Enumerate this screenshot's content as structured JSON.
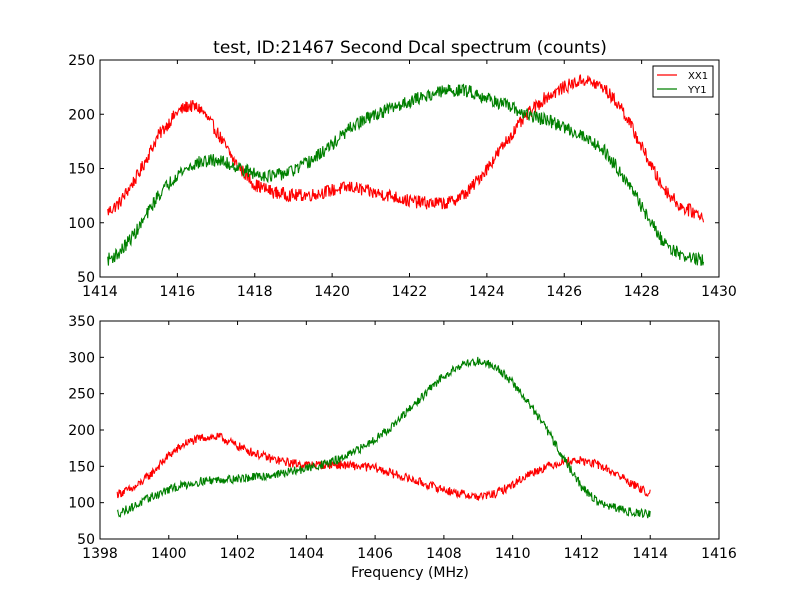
{
  "figure": {
    "title": "test, ID:21467 Second Dcal spectrum (counts)",
    "xlabel": "Frequency (MHz)"
  },
  "colors": {
    "XX1": "#ff0000",
    "YY1": "#008000",
    "axes": "#000000",
    "background": "#ffffff"
  },
  "chart_data": [
    {
      "type": "line",
      "title": "test, ID:21467 Second Dcal spectrum (counts)",
      "xlabel": "",
      "ylabel": "",
      "xlim": [
        1414,
        1430
      ],
      "ylim": [
        50,
        250
      ],
      "xticks": [
        1414,
        1416,
        1418,
        1420,
        1422,
        1424,
        1426,
        1428,
        1430
      ],
      "yticks": [
        50,
        100,
        150,
        200,
        250
      ],
      "grid": false,
      "legend": {
        "position": "top-right",
        "entries": [
          "XX1",
          "YY1"
        ]
      },
      "series": [
        {
          "name": "XX1",
          "color": "#ff0000",
          "x": [
            1414.2,
            1414.5,
            1415.0,
            1415.5,
            1416.0,
            1416.3,
            1416.6,
            1417.0,
            1417.5,
            1418.0,
            1418.5,
            1419.0,
            1419.5,
            1420.0,
            1420.5,
            1421.0,
            1421.5,
            1422.0,
            1422.5,
            1423.0,
            1423.5,
            1424.0,
            1424.5,
            1425.0,
            1425.5,
            1426.0,
            1426.5,
            1427.0,
            1427.5,
            1428.0,
            1428.5,
            1429.0,
            1429.6
          ],
          "values": [
            110,
            118,
            145,
            180,
            202,
            208,
            205,
            185,
            155,
            135,
            128,
            125,
            126,
            130,
            133,
            128,
            125,
            120,
            118,
            118,
            128,
            150,
            175,
            198,
            215,
            225,
            232,
            225,
            205,
            170,
            135,
            115,
            106
          ]
        },
        {
          "name": "YY1",
          "color": "#008000",
          "x": [
            1414.2,
            1414.5,
            1415.0,
            1415.5,
            1416.0,
            1416.5,
            1417.0,
            1417.5,
            1418.0,
            1418.5,
            1419.0,
            1419.5,
            1420.0,
            1420.5,
            1421.0,
            1421.5,
            1422.0,
            1422.5,
            1423.0,
            1423.5,
            1424.0,
            1424.5,
            1425.0,
            1425.5,
            1426.0,
            1426.5,
            1427.0,
            1427.5,
            1428.0,
            1428.5,
            1429.0,
            1429.6
          ],
          "values": [
            66,
            72,
            95,
            125,
            145,
            155,
            158,
            152,
            145,
            143,
            148,
            158,
            172,
            188,
            198,
            205,
            212,
            218,
            222,
            222,
            215,
            208,
            200,
            195,
            188,
            180,
            168,
            145,
            115,
            85,
            70,
            65
          ]
        }
      ]
    },
    {
      "type": "line",
      "title": "",
      "xlabel": "Frequency (MHz)",
      "ylabel": "",
      "xlim": [
        1398,
        1416
      ],
      "ylim": [
        50,
        350
      ],
      "xticks": [
        1398,
        1400,
        1402,
        1404,
        1406,
        1408,
        1410,
        1412,
        1414,
        1416
      ],
      "yticks": [
        50,
        100,
        150,
        200,
        250,
        300,
        350
      ],
      "grid": false,
      "series": [
        {
          "name": "XX1",
          "color": "#ff0000",
          "x": [
            1398.5,
            1399.0,
            1399.5,
            1400.0,
            1400.5,
            1401.0,
            1401.5,
            1402.0,
            1402.5,
            1403.0,
            1403.5,
            1404.0,
            1404.5,
            1405.0,
            1405.5,
            1406.0,
            1406.5,
            1407.0,
            1407.5,
            1408.0,
            1408.5,
            1409.0,
            1409.5,
            1410.0,
            1410.5,
            1411.0,
            1411.5,
            1412.0,
            1412.5,
            1413.0,
            1413.5,
            1414.0
          ],
          "values": [
            112,
            120,
            140,
            165,
            182,
            190,
            190,
            178,
            168,
            160,
            155,
            152,
            152,
            152,
            150,
            148,
            140,
            133,
            125,
            118,
            112,
            108,
            112,
            125,
            140,
            150,
            157,
            158,
            152,
            140,
            125,
            112
          ]
        },
        {
          "name": "YY1",
          "color": "#008000",
          "x": [
            1398.5,
            1399.0,
            1399.5,
            1400.0,
            1400.5,
            1401.0,
            1401.5,
            1402.0,
            1402.5,
            1403.0,
            1403.5,
            1404.0,
            1404.5,
            1405.0,
            1405.5,
            1406.0,
            1406.5,
            1407.0,
            1407.5,
            1408.0,
            1408.5,
            1409.0,
            1409.5,
            1410.0,
            1410.5,
            1411.0,
            1411.5,
            1412.0,
            1412.5,
            1413.0,
            1413.5,
            1414.0
          ],
          "values": [
            85,
            95,
            108,
            118,
            125,
            130,
            132,
            133,
            135,
            138,
            142,
            147,
            153,
            160,
            172,
            188,
            205,
            228,
            252,
            275,
            290,
            295,
            288,
            265,
            235,
            200,
            160,
            122,
            100,
            92,
            87,
            84
          ]
        }
      ]
    }
  ]
}
